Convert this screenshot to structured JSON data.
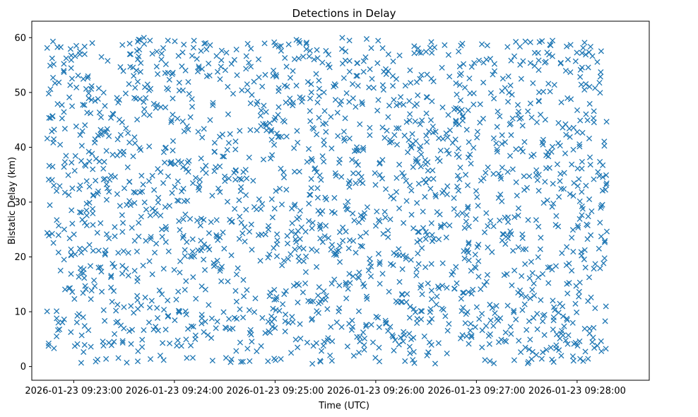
{
  "chart_data": {
    "type": "scatter",
    "title": "Detections in Delay",
    "xlabel": "Time (UTC)",
    "ylabel": "Bistatic Delay (km)",
    "marker": "x",
    "color": "#1f77b4",
    "x_unit": "seconds since 2026-01-23 09:23:00",
    "xlim": [
      -25,
      343
    ],
    "ylim": [
      -2.5,
      63
    ],
    "x_ticks": [
      {
        "value": 0,
        "label": "2026-01-23 09:23:00"
      },
      {
        "value": 60,
        "label": "2026-01-23 09:24:00"
      },
      {
        "value": 120,
        "label": "2026-01-23 09:25:00"
      },
      {
        "value": 180,
        "label": "2026-01-23 09:26:00"
      },
      {
        "value": 240,
        "label": "2026-01-23 09:27:00"
      },
      {
        "value": 300,
        "label": "2026-01-23 09:28:00"
      }
    ],
    "y_ticks": [
      {
        "value": 0,
        "label": "0"
      },
      {
        "value": 10,
        "label": "10"
      },
      {
        "value": 20,
        "label": "20"
      },
      {
        "value": 30,
        "label": "30"
      },
      {
        "value": 40,
        "label": "40"
      },
      {
        "value": 50,
        "label": "50"
      },
      {
        "value": 60,
        "label": "60"
      }
    ],
    "point_generation": {
      "note": "About 2000 detections uniformly scattered; x from -16 to 318 s, y from 0.5 to 60 km",
      "count": 2000,
      "x_range": [
        -16,
        318
      ],
      "y_range": [
        0.5,
        60
      ],
      "seed": 20260123
    }
  }
}
